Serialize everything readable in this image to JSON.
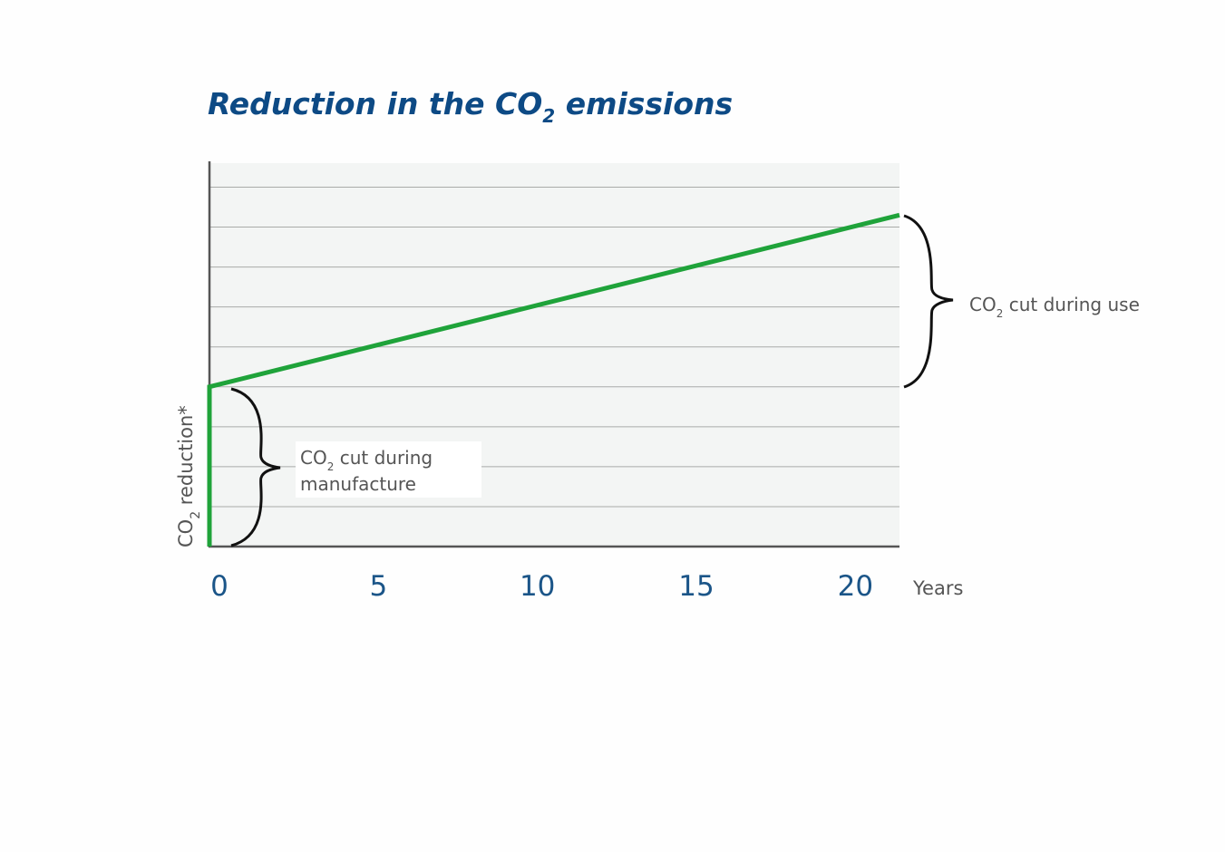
{
  "chart_data": {
    "type": "line",
    "title": {
      "main": "Reduction in the CO",
      "sub": "2",
      "rest": " emissions"
    },
    "xlabel": "Years",
    "ylabel": {
      "main": "CO",
      "sub": "2",
      "rest": " reduction*"
    },
    "x_ticks": [
      0,
      5,
      10,
      15,
      20
    ],
    "xlim": [
      0,
      21.7
    ],
    "ylim": [
      0,
      9.6
    ],
    "y_ticks_labeled": false,
    "grid": true,
    "series": [
      {
        "x": [
          0,
          0,
          21.7
        ],
        "y": [
          0,
          4,
          8.3
        ]
      }
    ],
    "annotations": [
      {
        "main": "CO",
        "sub": "2",
        "rest": " cut during",
        "line2": "manufacture"
      },
      {
        "main": "CO",
        "sub": "2",
        "rest": " cut during use"
      }
    ],
    "colors": {
      "line": "#1fa33a",
      "title": "#0d4a85",
      "ticks": "#1b5588",
      "plot_bg": "#f3f5f4",
      "grid": "#a9aba9",
      "axis": "#555555"
    }
  }
}
